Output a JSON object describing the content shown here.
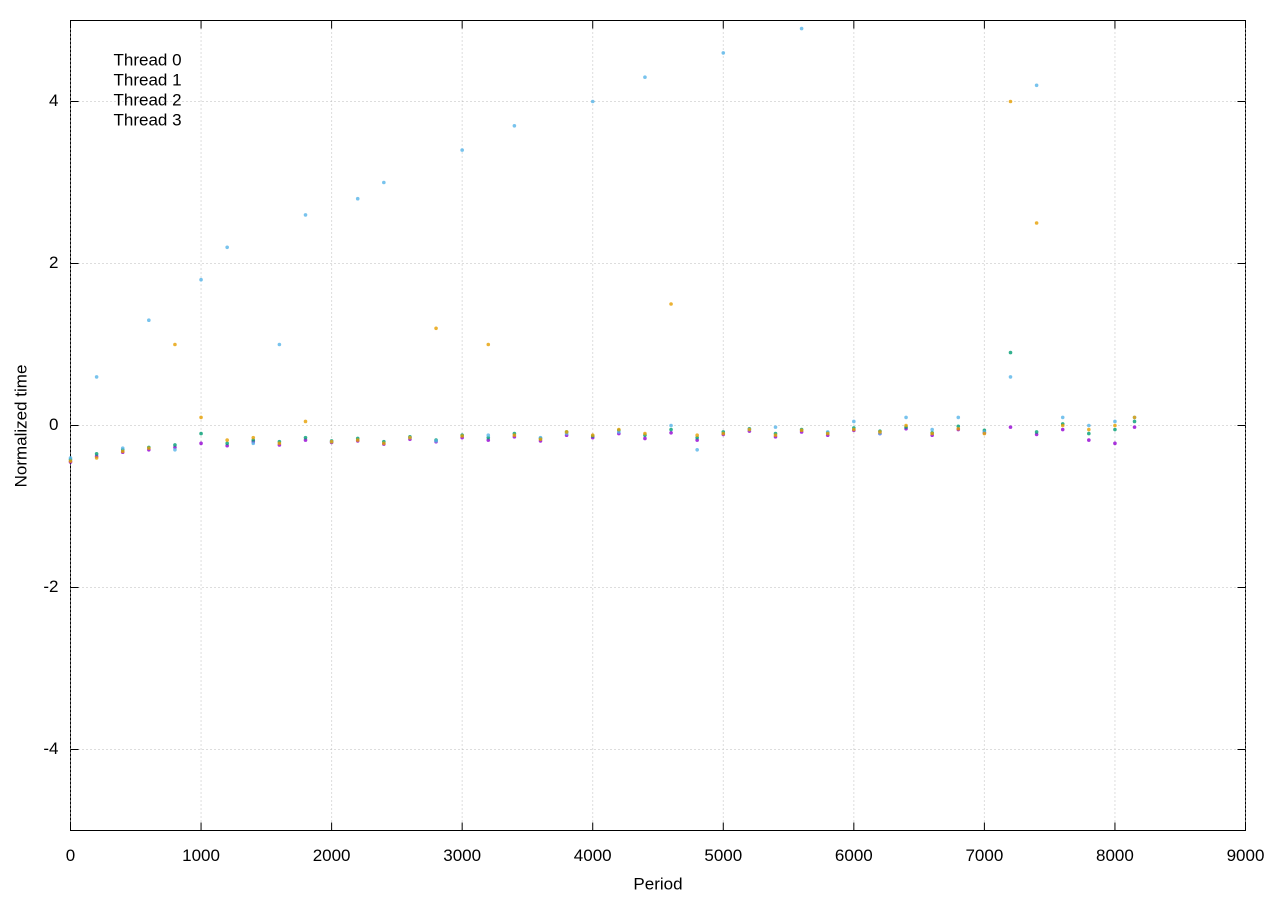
{
  "chart_data": {
    "type": "scatter",
    "xlabel": "Period",
    "ylabel": "Normalized time",
    "xlim": [
      0,
      9000
    ],
    "xticks": [
      0,
      1000,
      2000,
      3000,
      4000,
      5000,
      6000,
      7000,
      8000,
      9000
    ],
    "ylim": [
      -5,
      5
    ],
    "yticks": [
      -4,
      -2,
      0,
      2,
      4
    ],
    "grid": true,
    "legend": "top-left",
    "x": [
      0,
      200,
      400,
      600,
      800,
      1000,
      1200,
      1400,
      1600,
      1800,
      2000,
      2200,
      2400,
      2600,
      2800,
      3000,
      3200,
      3400,
      3600,
      3800,
      4000,
      4200,
      4400,
      4600,
      4800,
      5000,
      5200,
      5400,
      5600,
      5800,
      6000,
      6200,
      6400,
      6600,
      6800,
      7000,
      7200,
      7400,
      7600,
      7800,
      8000,
      8150
    ],
    "series": [
      {
        "name": "Thread 0",
        "color": "#9400d3",
        "values": [
          -0.45,
          -0.38,
          -0.33,
          -0.3,
          -0.27,
          -0.22,
          -0.25,
          -0.2,
          -0.24,
          -0.18,
          -0.21,
          -0.19,
          -0.23,
          -0.17,
          -0.2,
          -0.15,
          -0.18,
          -0.14,
          -0.19,
          -0.12,
          -0.15,
          -0.1,
          -0.16,
          -0.09,
          -0.18,
          -0.11,
          -0.07,
          -0.14,
          -0.08,
          -0.12,
          -0.06,
          -0.1,
          -0.04,
          -0.12,
          -0.05,
          -0.09,
          -0.02,
          -0.11,
          -0.05,
          -0.18,
          -0.22,
          -0.02
        ]
      },
      {
        "name": "Thread 1",
        "color": "#009e73",
        "values": [
          -0.42,
          -0.35,
          -0.3,
          -0.27,
          -0.24,
          -0.1,
          -0.22,
          -0.18,
          -0.2,
          -0.15,
          -0.19,
          -0.16,
          -0.2,
          -0.14,
          -0.18,
          -0.12,
          -0.15,
          -0.1,
          -0.16,
          -0.08,
          -0.13,
          -0.06,
          -0.12,
          -0.05,
          -0.15,
          -0.08,
          -0.04,
          -0.1,
          -0.05,
          -0.09,
          -0.03,
          -0.07,
          -0.02,
          -0.09,
          -0.01,
          -0.06,
          0.9,
          -0.08,
          0.02,
          -0.1,
          -0.05,
          0.05
        ]
      },
      {
        "name": "Thread 2",
        "color": "#56b4e9",
        "values": [
          -0.4,
          0.6,
          -0.28,
          1.3,
          -0.3,
          1.8,
          2.2,
          -0.22,
          1.0,
          2.6,
          -0.2,
          2.8,
          3.0,
          -0.15,
          -0.19,
          3.4,
          -0.12,
          3.7,
          -0.15,
          -0.1,
          4.0,
          -0.08,
          4.3,
          0.0,
          -0.3,
          4.6,
          -0.05,
          -0.02,
          4.9,
          -0.08,
          0.05,
          -0.1,
          0.1,
          -0.05,
          0.1,
          -0.08,
          0.6,
          4.2,
          0.1,
          0.0,
          0.05,
          0.1
        ]
      },
      {
        "name": "Thread 3",
        "color": "#e69f00",
        "values": [
          -0.44,
          -0.4,
          -0.32,
          -0.28,
          1.0,
          0.1,
          -0.18,
          -0.15,
          -0.22,
          0.05,
          -0.2,
          -0.18,
          -0.22,
          -0.15,
          1.2,
          -0.13,
          1.0,
          -0.12,
          -0.17,
          -0.08,
          -0.12,
          -0.05,
          -0.1,
          1.5,
          -0.12,
          -0.1,
          -0.05,
          -0.12,
          -0.06,
          -0.1,
          -0.05,
          -0.08,
          0.0,
          -0.1,
          -0.04,
          -0.1,
          4.0,
          2.5,
          0.0,
          -0.05,
          0.0,
          0.1
        ]
      }
    ]
  }
}
